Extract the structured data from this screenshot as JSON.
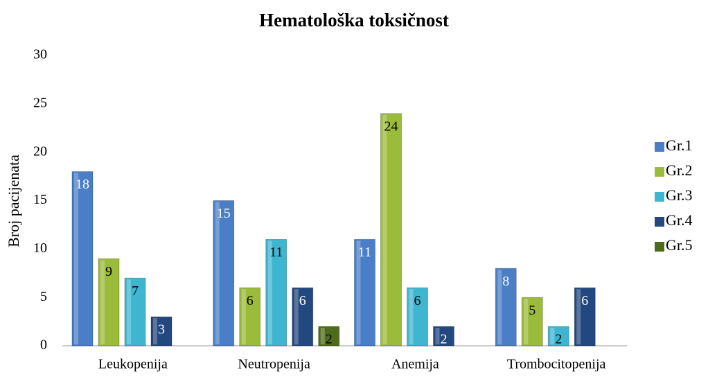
{
  "chart_data": {
    "type": "bar",
    "title": "Hematološka toksičnost",
    "y_label": "Broj pacijenata",
    "categories": [
      "Leukopenija",
      "Neutropenija",
      "Anemija",
      "Trombocitopenija"
    ],
    "series": [
      {
        "name": "Gr.1",
        "color": "#4a7fc8",
        "label_color": "#ffffff",
        "values": [
          18,
          15,
          11,
          8
        ]
      },
      {
        "name": "Gr.2",
        "color": "#9bbb3b",
        "label_color": "#000000",
        "values": [
          9,
          6,
          24,
          5
        ]
      },
      {
        "name": "Gr.3",
        "color": "#3fb6cf",
        "label_color": "#000000",
        "values": [
          7,
          11,
          6,
          2
        ]
      },
      {
        "name": "Gr.4",
        "color": "#23487f",
        "label_color": "#ffffff",
        "values": [
          3,
          6,
          2,
          6
        ]
      },
      {
        "name": "Gr.5",
        "color": "#4e6b1c",
        "label_color": "#000000",
        "values": [
          null,
          2,
          null,
          null
        ]
      }
    ],
    "ylim": [
      0,
      30
    ],
    "yticks": [
      0,
      5,
      10,
      15,
      20,
      25,
      30
    ],
    "grid": false,
    "legend": "right"
  }
}
